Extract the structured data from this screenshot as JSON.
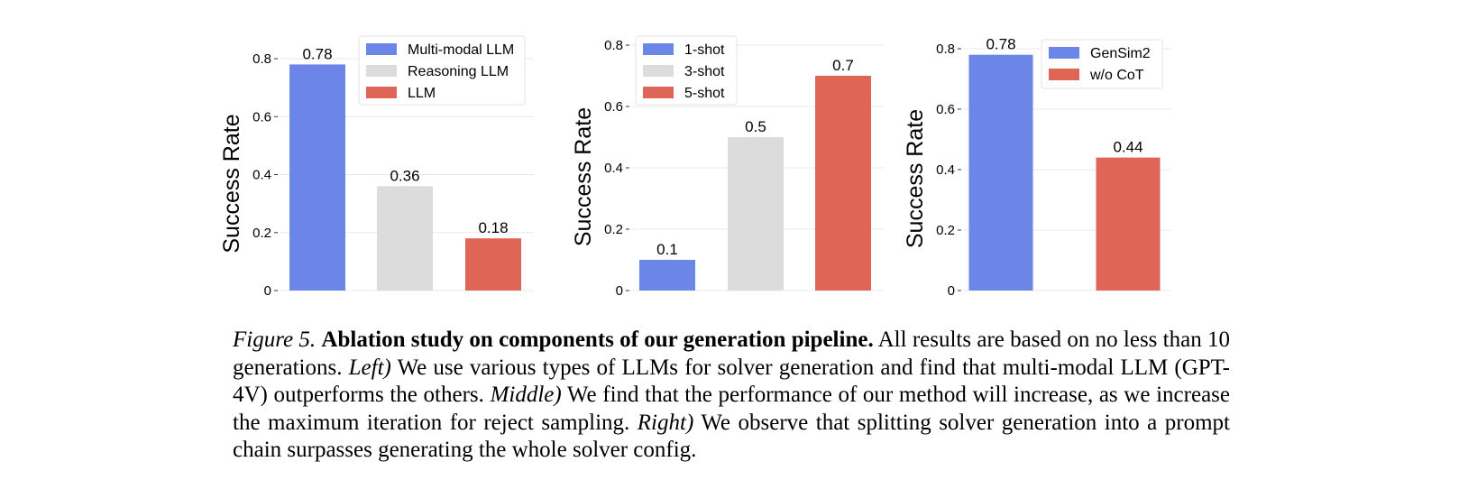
{
  "colors": {
    "blue": "#6b86e6",
    "gray": "#dcdcdc",
    "red": "#df6657",
    "grid": "#e8e8e8",
    "axis": "#000000"
  },
  "chart_data": [
    {
      "type": "bar",
      "categories": [
        "Multi-modal LLM",
        "Reasoning LLM",
        "LLM"
      ],
      "values": [
        0.78,
        0.36,
        0.18
      ],
      "value_labels": [
        "0.78",
        "0.36",
        "0.18"
      ],
      "series_colors": [
        "blue",
        "gray",
        "red"
      ],
      "ylabel": "Success Rate",
      "ylim": [
        0,
        0.8
      ],
      "yticks": [
        0,
        0.2,
        0.4,
        0.6,
        0.8
      ],
      "ytick_labels": [
        "0",
        "0.2",
        "0.4",
        "0.6",
        "0.8"
      ],
      "legend": [
        "Multi-modal LLM",
        "Reasoning LLM",
        "LLM"
      ],
      "legend_position": "top-right",
      "grid": true
    },
    {
      "type": "bar",
      "categories": [
        "1-shot",
        "3-shot",
        "5-shot"
      ],
      "values": [
        0.1,
        0.5,
        0.7
      ],
      "value_labels": [
        "0.1",
        "0.5",
        "0.7"
      ],
      "series_colors": [
        "blue",
        "gray",
        "red"
      ],
      "ylabel": "Success Rate",
      "ylim": [
        0,
        0.8
      ],
      "yticks": [
        0,
        0.2,
        0.4,
        0.6,
        0.8
      ],
      "ytick_labels": [
        "0",
        "0.2",
        "0.4",
        "0.6",
        "0.8"
      ],
      "legend": [
        "1-shot",
        "3-shot",
        "5-shot"
      ],
      "legend_position": "top-left",
      "grid": true
    },
    {
      "type": "bar",
      "categories": [
        "GenSim2",
        "w/o CoT"
      ],
      "values": [
        0.78,
        0.44
      ],
      "value_labels": [
        "0.78",
        "0.44"
      ],
      "series_colors": [
        "blue",
        "red"
      ],
      "ylabel": "Success Rate",
      "ylim": [
        0,
        0.8
      ],
      "yticks": [
        0,
        0.2,
        0.4,
        0.6,
        0.8
      ],
      "ytick_labels": [
        "0",
        "0.2",
        "0.4",
        "0.6",
        "0.8"
      ],
      "legend": [
        "GenSim2",
        "w/o CoT"
      ],
      "legend_position": "top-right",
      "grid": true
    }
  ],
  "caption": {
    "figure_label": "Figure 5.",
    "title": "Ablation study on components of our generation pipeline.",
    "text1": "All results are based on no less than 10 generations.",
    "left_label": "Left)",
    "left_text": "We use various types of LLMs for solver generation and find that multi-modal LLM (GPT-4V) outperforms the others.",
    "middle_label": "Middle)",
    "middle_text": "We find that the performance of our method will increase, as we increase the maximum iteration for reject sampling.",
    "right_label": "Right)",
    "right_text": "We observe that splitting solver generation into a prompt chain surpasses generating the whole solver config."
  }
}
